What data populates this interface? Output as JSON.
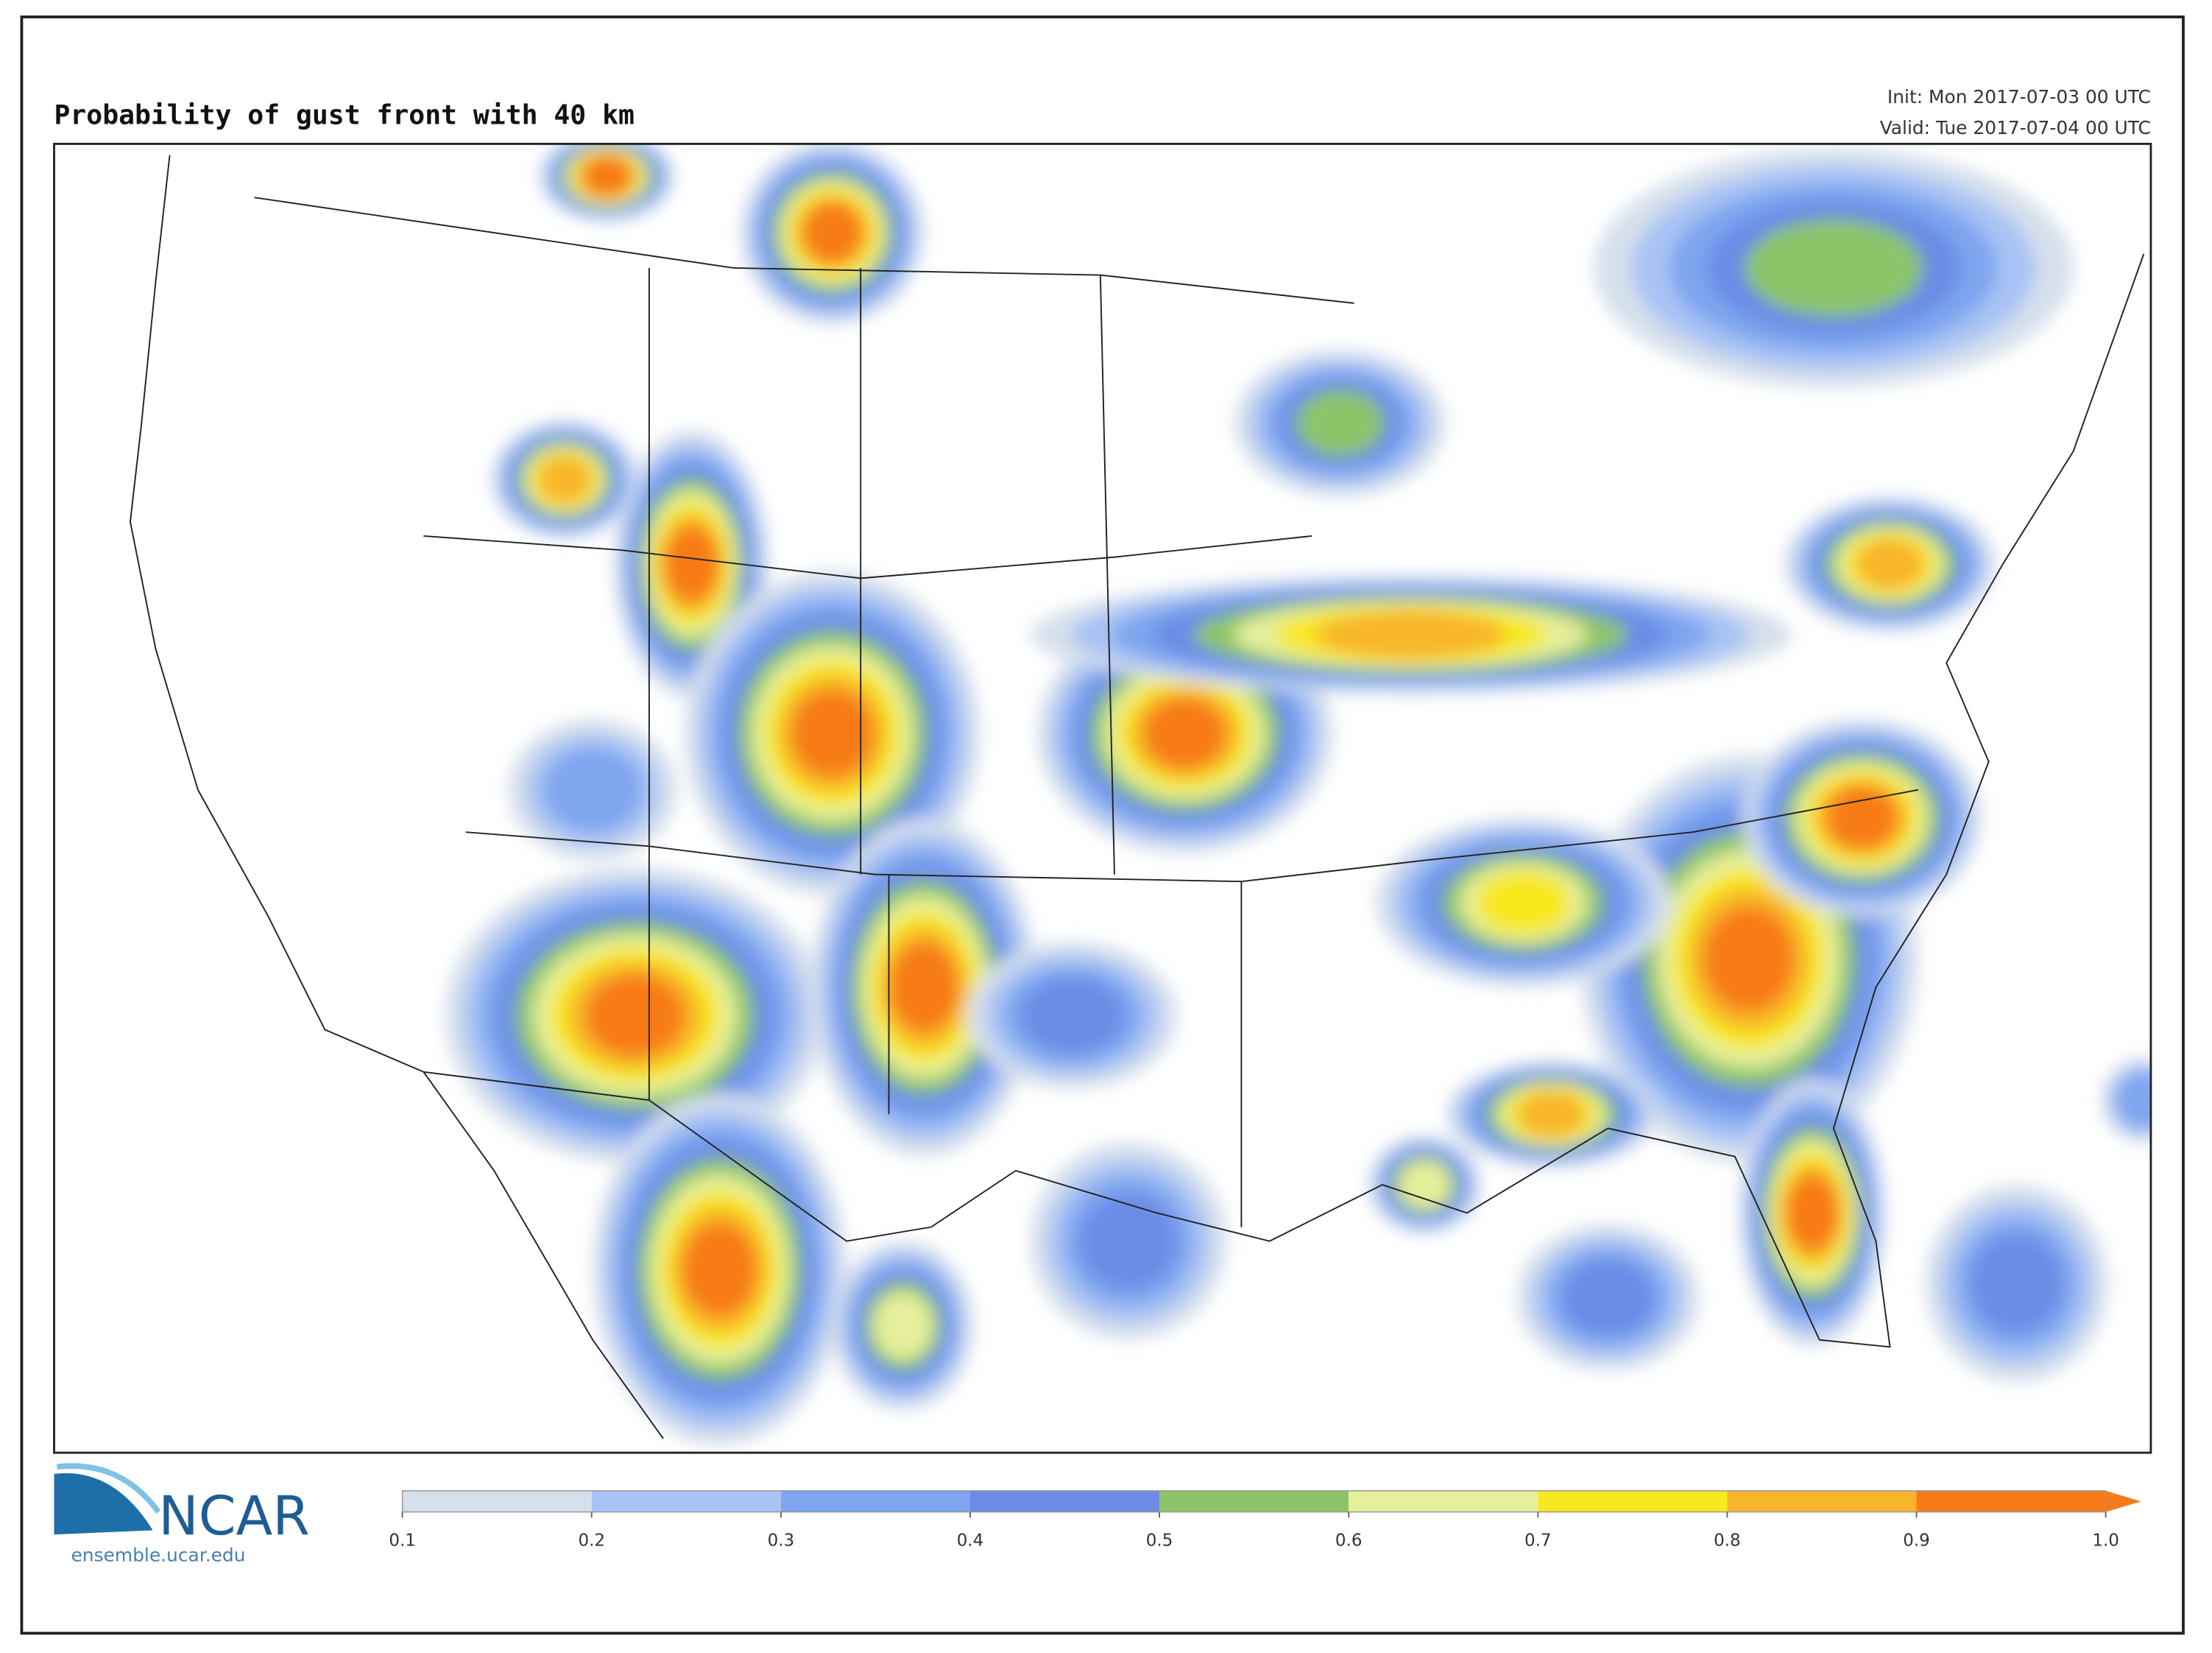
{
  "header": {
    "title": "Probability of gust front with 40 km",
    "init": "Init: Mon 2017-07-03 00 UTC",
    "valid": "Valid: Tue 2017-07-04 00 UTC"
  },
  "colorbar": {
    "ticks": [
      0.1,
      0.2,
      0.3,
      0.4,
      0.5,
      0.6,
      0.7,
      0.8,
      0.9,
      {
        "value": 1,
        "label": "1.0"
      }
    ],
    "colors": [
      "#d6e0ec",
      "#a9c3f4",
      "#7fa5ef",
      "#6b8be6",
      "#8dc46a",
      "#e6ef9c",
      "#f7e81f",
      "#f8b52c",
      "#f77a18"
    ]
  },
  "logo": {
    "name": "NCAR",
    "url": "ensemble.ucar.edu"
  }
}
